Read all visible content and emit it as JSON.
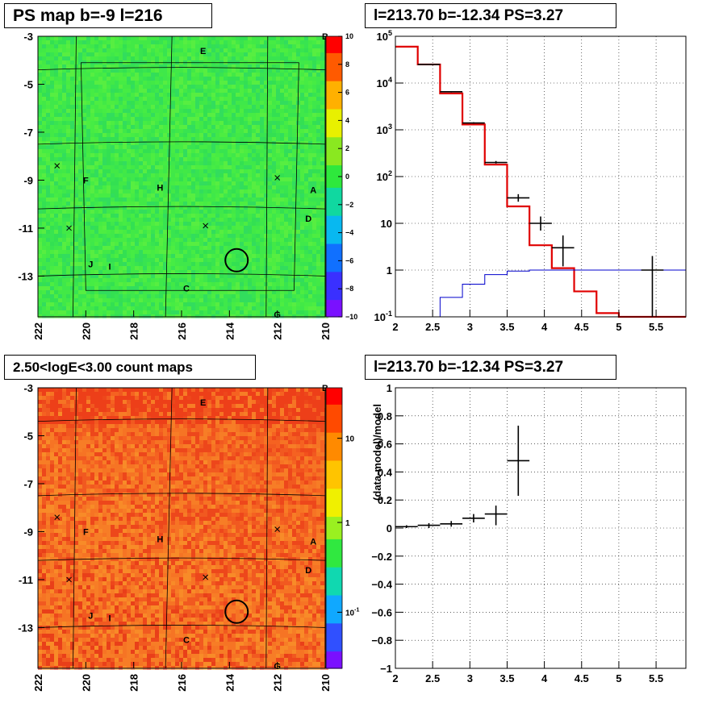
{
  "panels": {
    "top_left_title": "PS map b=-9 l=216",
    "top_right_title": "l=213.70 b=-12.34 PS=3.27",
    "bottom_left_title": "2.50<logE<3.00 count maps",
    "bottom_right_title": "l=213.70 b=-12.34 PS=3.27"
  },
  "colors": {
    "ps_map_background": "#3fe84a",
    "count_map_background": "#f35a1f",
    "model_line": "#e00000",
    "background_line": "#0000cc",
    "data_marker": "#000000"
  },
  "chart_data": [
    {
      "type": "heatmap",
      "title": "PS map b=-9 l=216",
      "x_ticks": [
        "222",
        "220",
        "218",
        "216",
        "214",
        "212",
        "210"
      ],
      "y_ticks": [
        "-3",
        "-5",
        "-7",
        "-9",
        "-11",
        "-13"
      ],
      "xlim": [
        222,
        210
      ],
      "ylim": [
        -14.7,
        -3
      ],
      "colorbar": {
        "ticks": [
          "10",
          "8",
          "6",
          "4",
          "2",
          "0",
          "−2",
          "−4",
          "−6",
          "−8",
          "−10"
        ],
        "range": [
          -10,
          10
        ],
        "scale": "linear"
      },
      "labels": [
        {
          "text": "B",
          "l": 210.0,
          "b": -3.0
        },
        {
          "text": "E",
          "l": 215.1,
          "b": -3.6
        },
        {
          "text": "A",
          "l": 210.5,
          "b": -9.4
        },
        {
          "text": "D",
          "l": 210.7,
          "b": -10.6
        },
        {
          "text": "H",
          "l": 216.9,
          "b": -9.3
        },
        {
          "text": "F",
          "l": 220.0,
          "b": -9.0
        },
        {
          "text": "J",
          "l": 219.8,
          "b": -12.5
        },
        {
          "text": "I",
          "l": 219.0,
          "b": -12.6
        },
        {
          "text": "C",
          "l": 215.8,
          "b": -13.5
        },
        {
          "text": "G",
          "l": 212.0,
          "b": -14.6
        }
      ],
      "x_markers": [
        {
          "l": 221.2,
          "b": -8.4
        },
        {
          "l": 220.7,
          "b": -11.0
        },
        {
          "l": 215.0,
          "b": -10.9
        },
        {
          "l": 212.0,
          "b": -8.9
        }
      ],
      "circle": {
        "l": 213.7,
        "b": -12.34
      }
    },
    {
      "type": "line",
      "title": "l=213.70 b=-12.34 PS=3.27",
      "x_ticks": [
        "2",
        "2.5",
        "3",
        "3.5",
        "4",
        "4.5",
        "5",
        "5.5"
      ],
      "y_ticks": [
        "10^-1",
        "1",
        "10",
        "10^2",
        "10^3",
        "10^4",
        "10^5"
      ],
      "xlim": [
        2,
        5.9
      ],
      "ylim": [
        0.1,
        100000
      ],
      "y_scale": "log",
      "grid": true,
      "series": [
        {
          "role": "model",
          "style": "step",
          "bin_edges": [
            2.0,
            2.3,
            2.6,
            2.9,
            3.2,
            3.5,
            3.8,
            4.1,
            4.4,
            4.7,
            5.0,
            5.3,
            5.6,
            5.9
          ],
          "values": [
            60000,
            25000,
            6000,
            1300,
            180,
            23,
            3.4,
            1.1,
            0.35,
            0.12,
            0.1,
            0.1,
            0.1
          ]
        },
        {
          "role": "background",
          "style": "step",
          "bin_edges": [
            2.6,
            2.9,
            3.2,
            3.5,
            3.8,
            4.1,
            4.4,
            4.7,
            5.0,
            5.3,
            5.6,
            5.9
          ],
          "values": [
            0.26,
            0.5,
            0.8,
            0.95,
            1.0,
            1.0,
            1.0,
            1.0,
            1.0,
            1.0,
            1.0
          ]
        },
        {
          "role": "data",
          "style": "errorbar",
          "points": [
            {
              "x": 2.45,
              "xerr": 0.15,
              "y": 25000,
              "ylo": 24500,
              "yhi": 25500
            },
            {
              "x": 2.75,
              "xerr": 0.15,
              "y": 6500,
              "ylo": 6300,
              "yhi": 6700
            },
            {
              "x": 3.05,
              "xerr": 0.15,
              "y": 1400,
              "ylo": 1350,
              "yhi": 1450
            },
            {
              "x": 3.35,
              "xerr": 0.15,
              "y": 200,
              "ylo": 190,
              "yhi": 215
            },
            {
              "x": 3.65,
              "xerr": 0.15,
              "y": 35,
              "ylo": 29,
              "yhi": 42
            },
            {
              "x": 3.95,
              "xerr": 0.15,
              "y": 10,
              "ylo": 7,
              "yhi": 14
            },
            {
              "x": 4.25,
              "xerr": 0.15,
              "y": 3,
              "ylo": 1.2,
              "yhi": 5.5
            },
            {
              "x": 5.45,
              "xerr": 0.15,
              "y": 1,
              "ylo": 0.1,
              "yhi": 2
            }
          ]
        }
      ]
    },
    {
      "type": "heatmap",
      "title": "2.50<logE<3.00 count maps",
      "x_ticks": [
        "222",
        "220",
        "218",
        "216",
        "214",
        "212",
        "210"
      ],
      "y_ticks": [
        "-3",
        "-5",
        "-7",
        "-9",
        "-11",
        "-13"
      ],
      "xlim": [
        222,
        210
      ],
      "ylim": [
        -14.7,
        -3
      ],
      "colorbar": {
        "ticks": [
          "10",
          "1",
          "10^-1"
        ],
        "scale": "log"
      },
      "labels": [
        {
          "text": "B",
          "l": 210.0,
          "b": -3.0
        },
        {
          "text": "E",
          "l": 215.1,
          "b": -3.6
        },
        {
          "text": "A",
          "l": 210.5,
          "b": -9.4
        },
        {
          "text": "D",
          "l": 210.7,
          "b": -10.6
        },
        {
          "text": "H",
          "l": 216.9,
          "b": -9.3
        },
        {
          "text": "F",
          "l": 220.0,
          "b": -9.0
        },
        {
          "text": "J",
          "l": 219.8,
          "b": -12.5
        },
        {
          "text": "I",
          "l": 219.0,
          "b": -12.6
        },
        {
          "text": "C",
          "l": 215.8,
          "b": -13.5
        },
        {
          "text": "G",
          "l": 212.0,
          "b": -14.6
        }
      ],
      "x_markers": [
        {
          "l": 221.2,
          "b": -8.4
        },
        {
          "l": 220.7,
          "b": -11.0
        },
        {
          "l": 215.0,
          "b": -10.9
        },
        {
          "l": 212.0,
          "b": -8.9
        }
      ],
      "circle": {
        "l": 213.7,
        "b": -12.34
      }
    },
    {
      "type": "scatter",
      "title": "l=213.70 b=-12.34 PS=3.27",
      "ylabel": "(data-model)/model",
      "x_ticks": [
        "2",
        "2.5",
        "3",
        "3.5",
        "4",
        "4.5",
        "5",
        "5.5"
      ],
      "y_ticks": [
        "−1",
        "−0.8",
        "−0.6",
        "−0.4",
        "−0.2",
        "0",
        "0.2",
        "0.4",
        "0.6",
        "0.8",
        "1"
      ],
      "xlim": [
        2,
        5.9
      ],
      "ylim": [
        -1,
        1
      ],
      "grid": true,
      "points": [
        {
          "x": 2.15,
          "xerr": 0.15,
          "y": 0.01,
          "ylo": 0.0,
          "yhi": 0.02
        },
        {
          "x": 2.45,
          "xerr": 0.15,
          "y": 0.02,
          "ylo": 0.0,
          "yhi": 0.035
        },
        {
          "x": 2.75,
          "xerr": 0.15,
          "y": 0.03,
          "ylo": 0.01,
          "yhi": 0.05
        },
        {
          "x": 3.05,
          "xerr": 0.15,
          "y": 0.07,
          "ylo": 0.04,
          "yhi": 0.1
        },
        {
          "x": 3.35,
          "xerr": 0.15,
          "y": 0.1,
          "ylo": 0.02,
          "yhi": 0.16
        },
        {
          "x": 3.65,
          "xerr": 0.15,
          "y": 0.48,
          "ylo": 0.23,
          "yhi": 0.73
        }
      ]
    }
  ]
}
